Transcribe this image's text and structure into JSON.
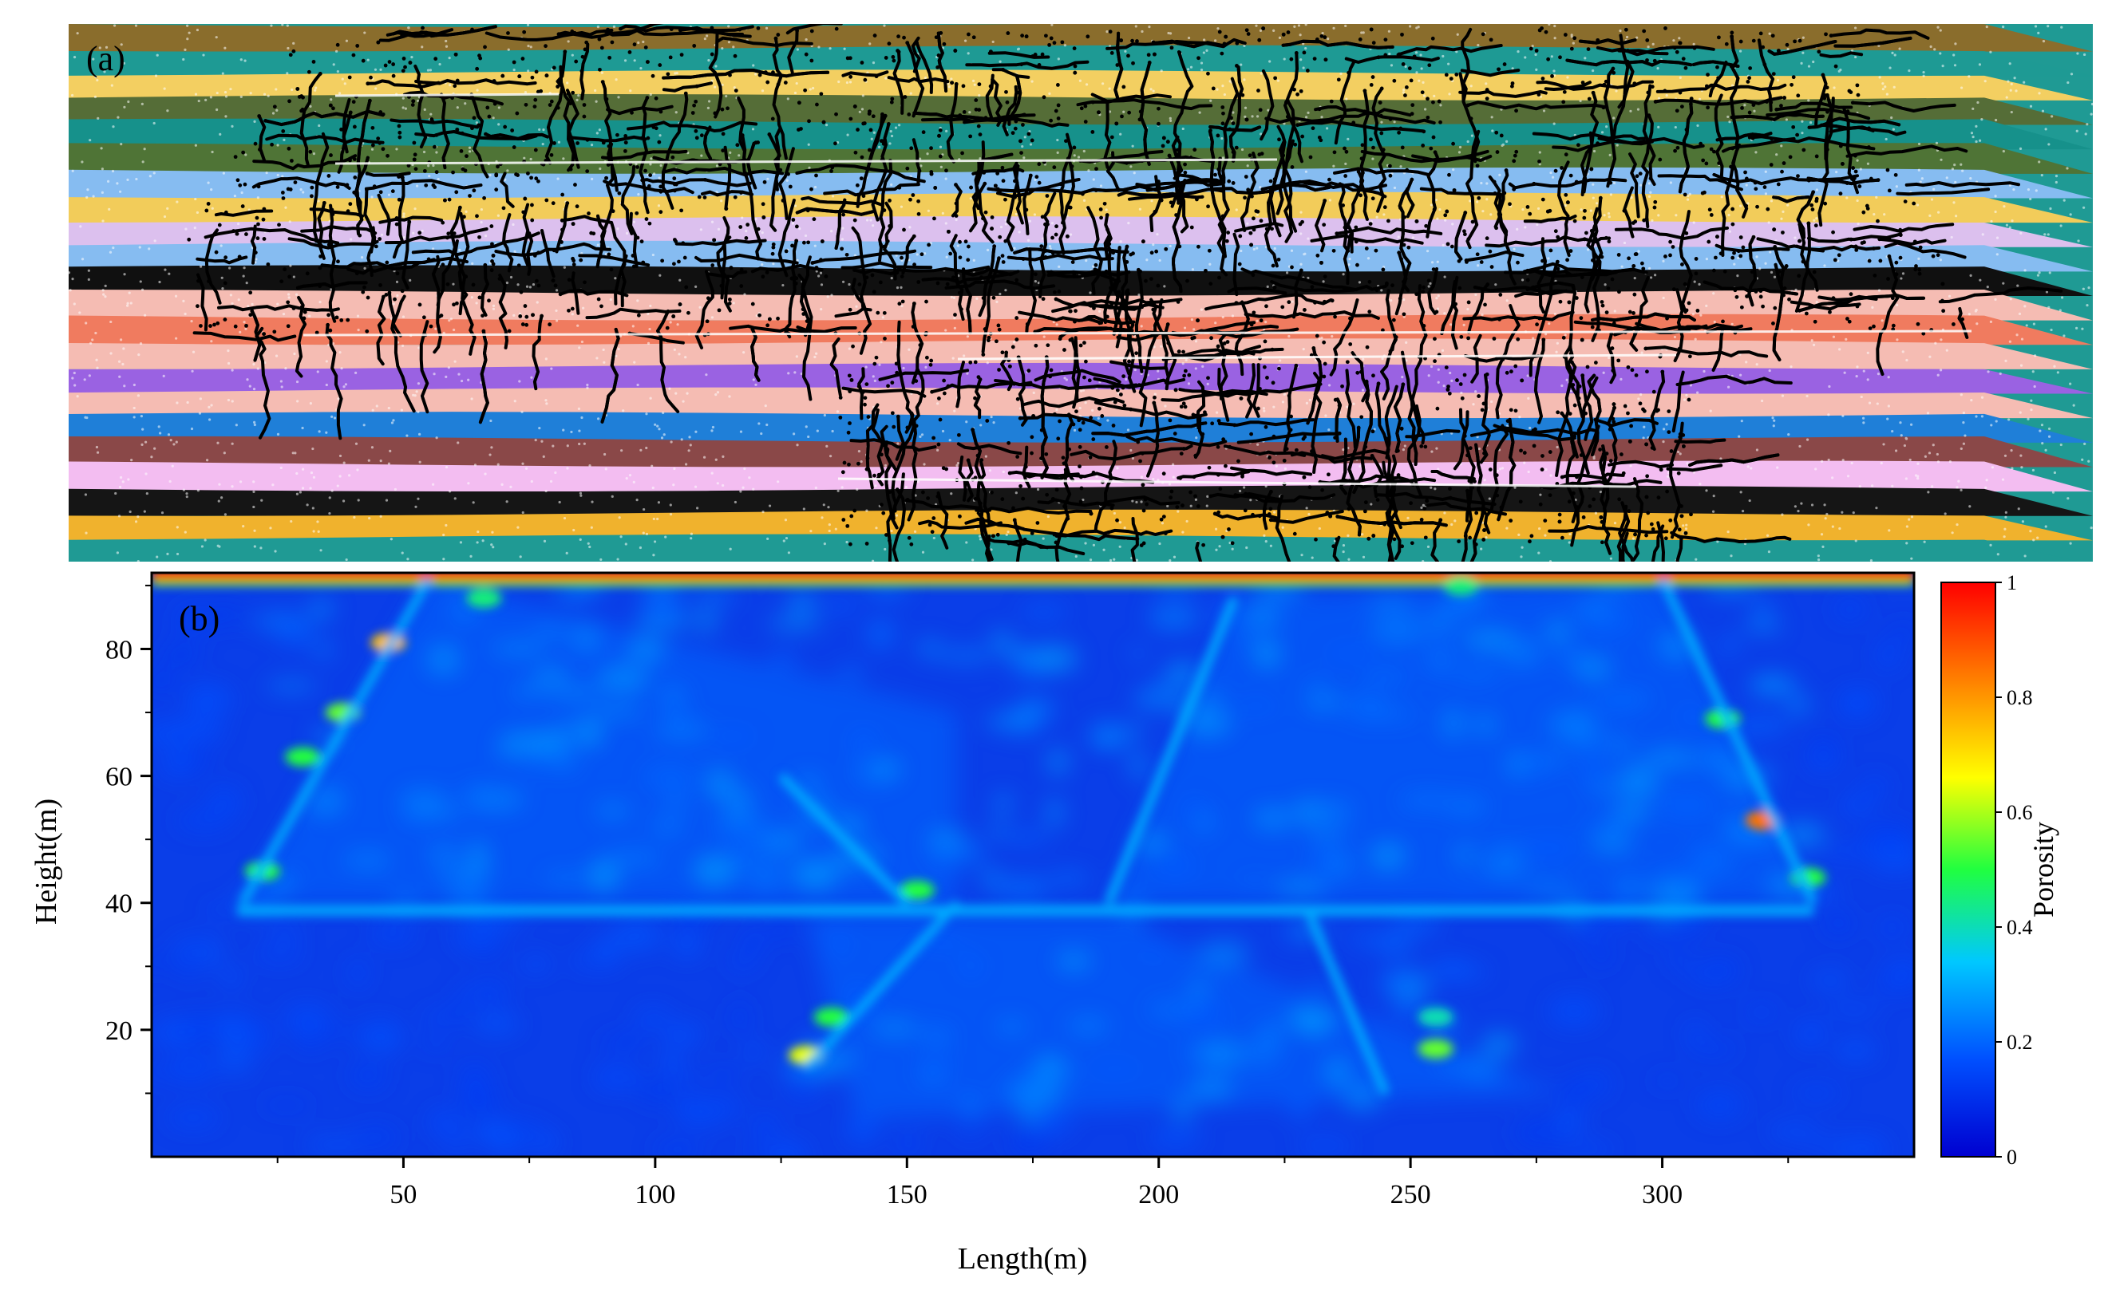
{
  "figure": {
    "panel_a_label": "(a)",
    "panel_b_label": "(b)"
  },
  "panel_a": {
    "type": "layered-particle-model",
    "strata_colors_top_to_bottom": [
      "#8a6d2c",
      "#1e9a94",
      "#f3cf61",
      "#556d37",
      "#16918b",
      "#4f7436",
      "#86bcf1",
      "#f2cc5a",
      "#dcc0ee",
      "#86bcf1",
      "#101010",
      "#f5bcb3",
      "#f07b5f",
      "#f5bcb3",
      "#9a62e2",
      "#f5bcb3",
      "#1f7fd8",
      "#8a4848",
      "#f3bdf1",
      "#151515",
      "#f0b22d",
      "#1f9a94"
    ],
    "fracture_color": "#000000"
  },
  "chart_data": {
    "type": "heatmap",
    "title": "",
    "xlabel": "Length(m)",
    "ylabel": "Height(m)",
    "xlim": [
      0,
      350
    ],
    "ylim": [
      0,
      92
    ],
    "x_ticks": [
      50,
      100,
      150,
      200,
      250,
      300
    ],
    "y_ticks": [
      20,
      40,
      60,
      80
    ],
    "colorbar": {
      "label": "Porosity",
      "range": [
        0,
        1
      ],
      "ticks": [
        0,
        0.2,
        0.4,
        0.6,
        0.8,
        1
      ],
      "tick_labels": [
        "0",
        "0.2",
        "0.4",
        "0.6",
        "0.8",
        "1"
      ],
      "colormap": [
        "#0000d0",
        "#0050ff",
        "#00c8ff",
        "#20ff40",
        "#ffff00",
        "#ff8000",
        "#ff0000"
      ]
    },
    "background_porosity": 0.12,
    "features": [
      {
        "kind": "band",
        "x": [
          17,
          330
        ],
        "y": 38.8,
        "value": 0.3
      },
      {
        "kind": "band",
        "x": [
          0,
          350
        ],
        "y": 91.5,
        "value": 0.95
      },
      {
        "kind": "hot",
        "x": 47,
        "y": 81,
        "value": 0.75
      },
      {
        "kind": "hot",
        "x": 38,
        "y": 70,
        "value": 0.55
      },
      {
        "kind": "hot",
        "x": 30,
        "y": 63,
        "value": 0.5
      },
      {
        "kind": "hot",
        "x": 22,
        "y": 45,
        "value": 0.5
      },
      {
        "kind": "hot",
        "x": 66,
        "y": 88,
        "value": 0.45
      },
      {
        "kind": "hot",
        "x": 130,
        "y": 16,
        "value": 0.65
      },
      {
        "kind": "hot",
        "x": 135,
        "y": 22,
        "value": 0.5
      },
      {
        "kind": "hot",
        "x": 152,
        "y": 42,
        "value": 0.5
      },
      {
        "kind": "hot",
        "x": 255,
        "y": 17,
        "value": 0.55
      },
      {
        "kind": "hot",
        "x": 255,
        "y": 22,
        "value": 0.4
      },
      {
        "kind": "hot",
        "x": 320,
        "y": 53,
        "value": 0.85
      },
      {
        "kind": "hot",
        "x": 312,
        "y": 69,
        "value": 0.5
      },
      {
        "kind": "hot",
        "x": 329,
        "y": 44,
        "value": 0.5
      },
      {
        "kind": "hot",
        "x": 260,
        "y": 90,
        "value": 0.45
      }
    ]
  }
}
